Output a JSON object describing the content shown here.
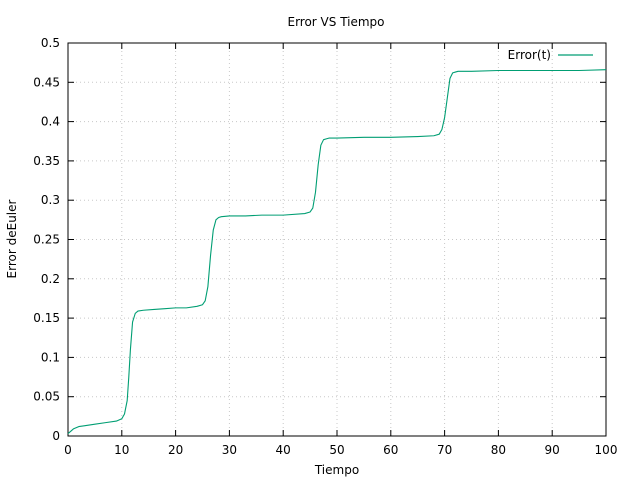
{
  "chart_data": {
    "type": "line",
    "title": "Error VS Tiempo",
    "xlabel": "Tiempo",
    "ylabel": "Error deEuler",
    "xlim": [
      0,
      100
    ],
    "ylim": [
      0,
      0.5
    ],
    "xticks": [
      "0",
      "10",
      "20",
      "30",
      "40",
      "50",
      "60",
      "70",
      "80",
      "90",
      "100"
    ],
    "yticks": [
      "0",
      "0.05",
      "0.1",
      "0.15",
      "0.2",
      "0.25",
      "0.3",
      "0.35",
      "0.4",
      "0.45",
      "0.5"
    ],
    "grid": true,
    "legend_position": "top-right",
    "series": [
      {
        "name": "Error(t)",
        "color": "#009e73",
        "x": [
          0,
          0.5,
          1,
          2,
          3,
          5,
          7,
          9,
          10,
          10.5,
          11,
          11.3,
          11.6,
          12,
          12.5,
          13,
          14,
          16,
          18,
          20,
          22,
          24,
          25,
          25.5,
          26,
          26.5,
          27,
          27.5,
          28,
          28.5,
          30,
          33,
          36,
          40,
          44,
          45,
          45.5,
          46,
          46.5,
          47,
          47.5,
          48,
          48.5,
          50,
          55,
          60,
          65,
          68,
          69,
          69.5,
          70,
          70.5,
          71,
          71.5,
          72,
          72.5,
          73,
          75,
          80,
          85,
          90,
          95,
          100
        ],
        "y": [
          0.003,
          0.006,
          0.009,
          0.012,
          0.013,
          0.015,
          0.017,
          0.019,
          0.022,
          0.028,
          0.045,
          0.075,
          0.11,
          0.145,
          0.156,
          0.159,
          0.16,
          0.161,
          0.162,
          0.163,
          0.163,
          0.165,
          0.167,
          0.172,
          0.19,
          0.23,
          0.262,
          0.275,
          0.278,
          0.279,
          0.28,
          0.28,
          0.281,
          0.281,
          0.283,
          0.285,
          0.29,
          0.31,
          0.345,
          0.37,
          0.377,
          0.378,
          0.379,
          0.379,
          0.38,
          0.38,
          0.381,
          0.382,
          0.384,
          0.39,
          0.405,
          0.43,
          0.455,
          0.462,
          0.463,
          0.464,
          0.464,
          0.464,
          0.465,
          0.465,
          0.465,
          0.465,
          0.466
        ]
      }
    ]
  }
}
